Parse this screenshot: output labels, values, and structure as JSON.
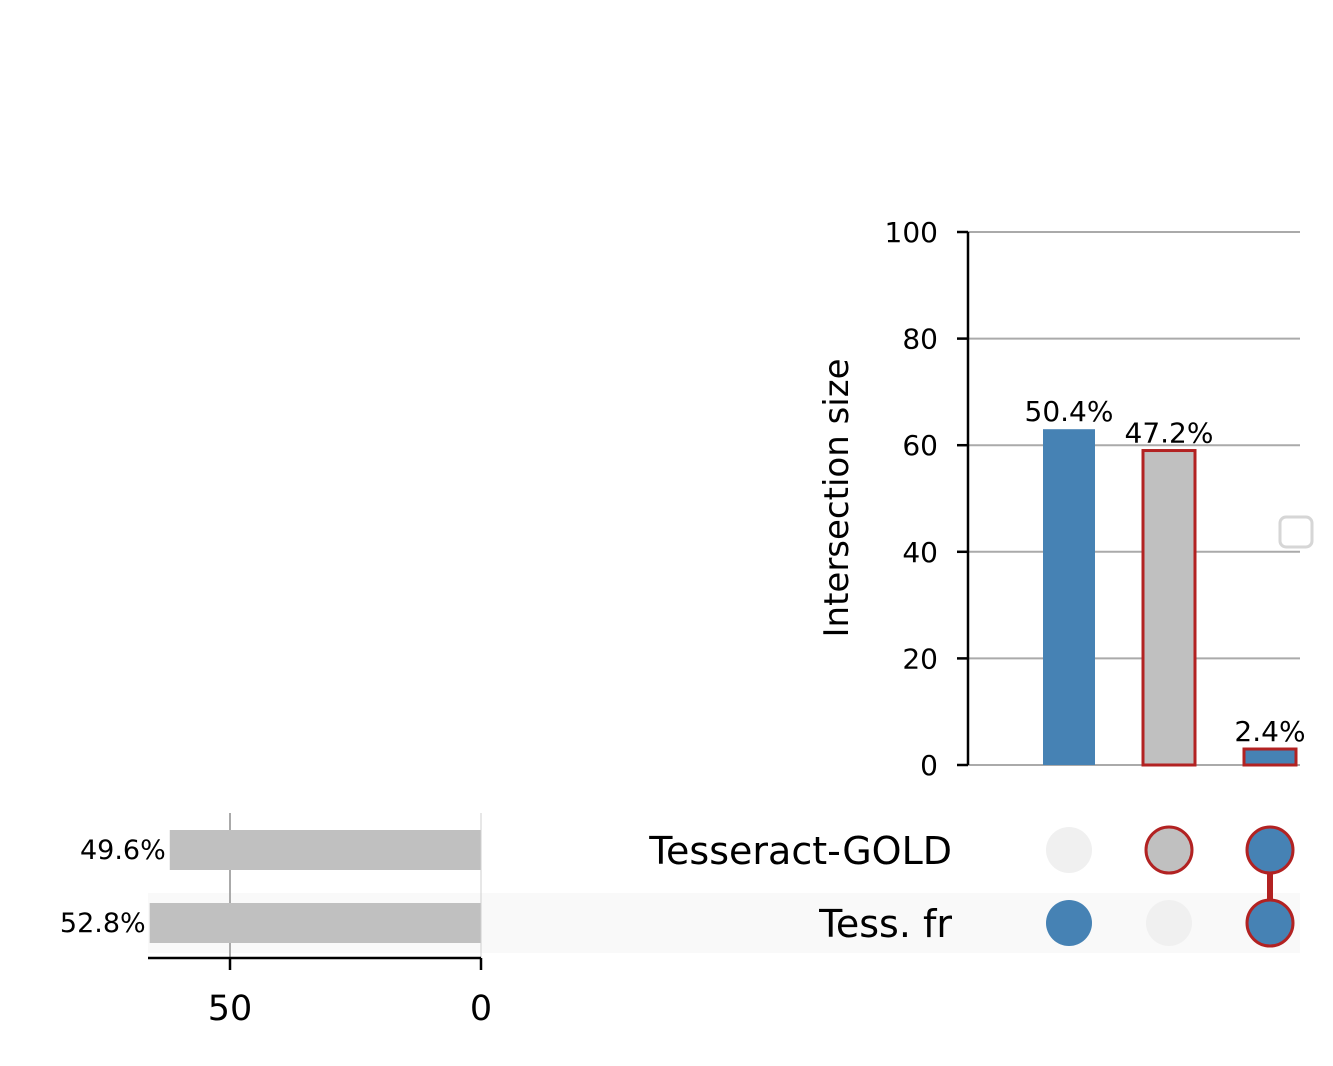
{
  "chart_data": {
    "type": "bar",
    "subtype": "upset",
    "colors": {
      "primary": "#4682b4",
      "grey_bar": "#c0c0c0",
      "highlight_edge": "#b22222",
      "empty_dot": "#f0f0f0",
      "grid": "#aaaaaa",
      "shade_row": "#f9f9f9"
    },
    "intersection_axis": {
      "ylabel": "Intersection size",
      "ylim": [
        0,
        100
      ],
      "ticks": [
        0,
        20,
        40,
        60,
        80,
        100
      ],
      "tick_labels": [
        "0",
        "20",
        "40",
        "60",
        "80",
        "100"
      ],
      "grid": true
    },
    "sets": [
      {
        "name": "Tesseract-GOLD",
        "size": 62,
        "label": "49.6%"
      },
      {
        "name": "Tess. fr",
        "size": 66,
        "label": "52.8%"
      }
    ],
    "set_axis": {
      "ticks": [
        50,
        0
      ],
      "tick_labels": [
        "50",
        "0"
      ],
      "xlim": [
        0,
        66
      ]
    },
    "intersections": [
      {
        "members": [
          false,
          true
        ],
        "value": 63,
        "label": "50.4%",
        "highlight": false,
        "bar_fill": "#4682b4",
        "dot_fill": "#4682b4"
      },
      {
        "members": [
          true,
          false
        ],
        "value": 59,
        "label": "47.2%",
        "highlight": true,
        "bar_fill": "#c0c0c0",
        "dot_fill": "#c0c0c0"
      },
      {
        "members": [
          true,
          true
        ],
        "value": 3,
        "label": "2.4%",
        "highlight": true,
        "bar_fill": "#4682b4",
        "dot_fill": "#4682b4"
      }
    ],
    "legend": {
      "placement": "right",
      "entries": []
    }
  }
}
